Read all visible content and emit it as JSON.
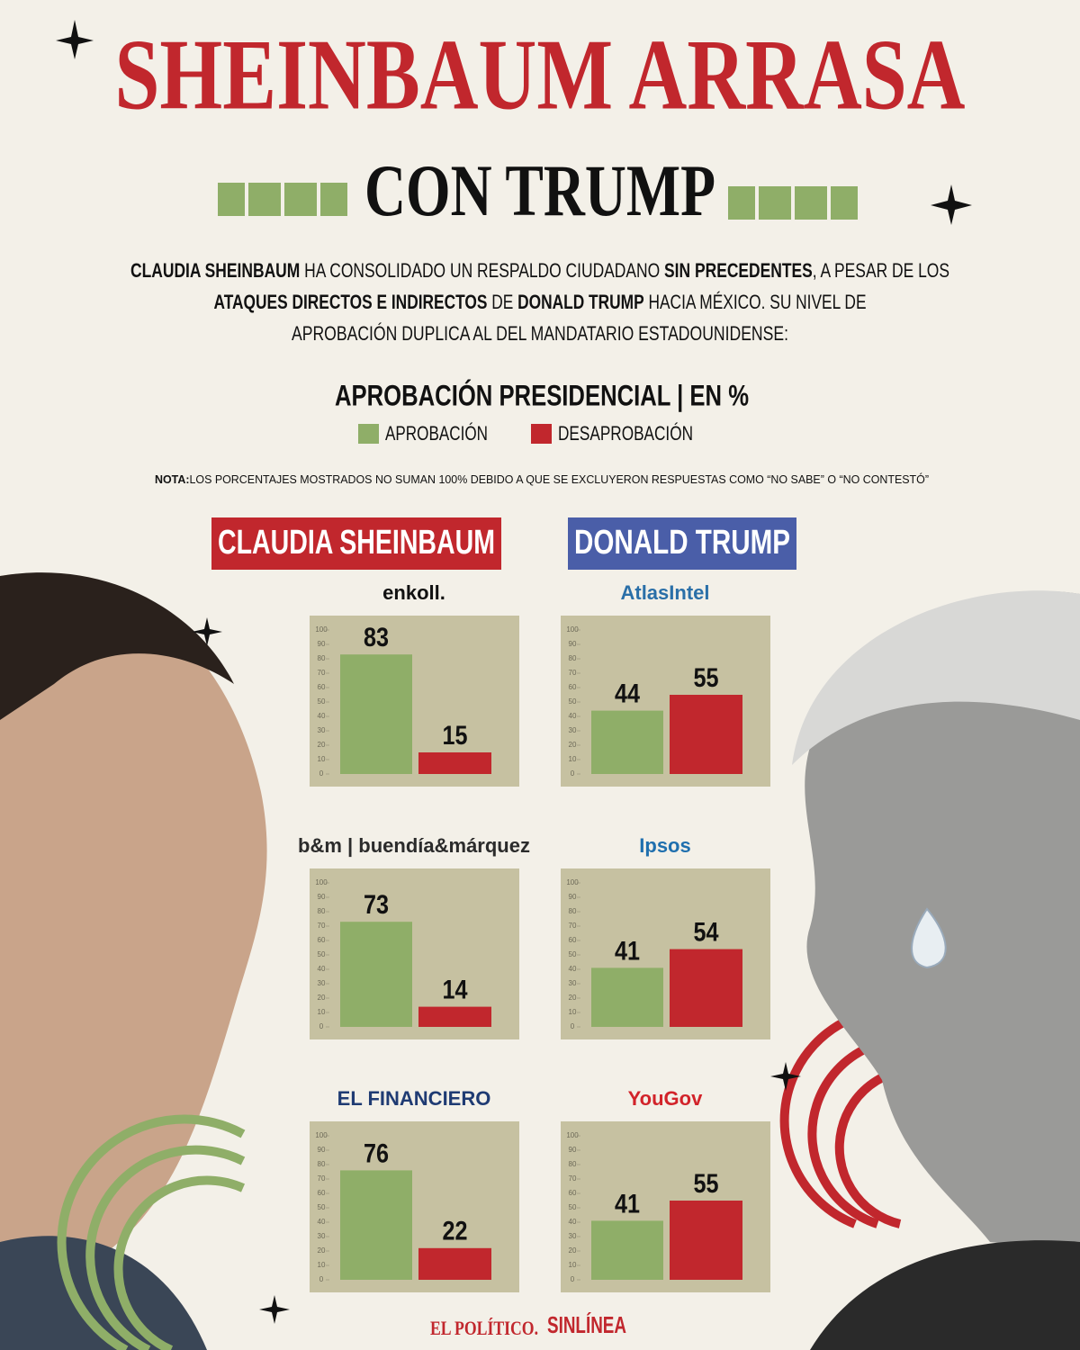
{
  "header": {
    "title": "SHEINBAUM ARRASA",
    "subtitle": "CON TRUMP"
  },
  "intro": [
    [
      {
        "text": "CLAUDIA SHEINBAUM",
        "bold": true
      },
      {
        "text": " HA CONSOLIDADO UN RESPALDO CIUDADANO ",
        "bold": false
      },
      {
        "text": "SIN PRECEDENTES",
        "bold": true
      },
      {
        "text": ", A PESAR DE LOS",
        "bold": false
      }
    ],
    [
      {
        "text": "ATAQUES DIRECTOS E INDIRECTOS",
        "bold": true
      },
      {
        "text": " DE ",
        "bold": false
      },
      {
        "text": "DONALD TRUMP",
        "bold": true
      },
      {
        "text": " HACIA MÉXICO. SU NIVEL DE",
        "bold": false
      }
    ],
    [
      {
        "text": "APROBACIÓN DUPLICA AL DEL MANDATARIO ESTADOUNIDENSE:",
        "bold": false
      }
    ]
  ],
  "chart_heading": "APROBACIÓN PRESIDENCIAL | EN %",
  "legend": [
    {
      "name": "APROBACIÓN",
      "color": "#8fae68"
    },
    {
      "name": "DESAPROBACIÓN",
      "color": "#c1272d"
    }
  ],
  "note": {
    "label": "NOTA:",
    "text": "LOS PORCENTAJES MOSTRADOS NO SUMAN 100% DEBIDO A QUE SE EXCLUYERON RESPUESTAS COMO “NO SABE” O “NO CONTESTÓ”"
  },
  "panels": [
    {
      "name": "CLAUDIA SHEINBAUM",
      "color": "#c1272d"
    },
    {
      "name": "DONALD TRUMP",
      "color": "#4a5ea8"
    }
  ],
  "chart_data": [
    {
      "type": "bar",
      "source": "enkoll.",
      "source_color": "#111111",
      "values": [
        83,
        15
      ],
      "colors": [
        "#8fae68",
        "#c1272d"
      ],
      "ylim": [
        0,
        100
      ],
      "yticks": [
        0,
        10,
        20,
        30,
        40,
        50,
        60,
        70,
        80,
        90,
        100
      ]
    },
    {
      "type": "bar",
      "source": "b&m | buendía&márquez",
      "source_color": "#2b2b2b",
      "values": [
        73,
        14
      ],
      "colors": [
        "#8fae68",
        "#c1272d"
      ],
      "ylim": [
        0,
        100
      ],
      "yticks": [
        0,
        10,
        20,
        30,
        40,
        50,
        60,
        70,
        80,
        90,
        100
      ]
    },
    {
      "type": "bar",
      "source": "EL FINANCIERO",
      "source_color": "#1f3b73",
      "values": [
        76,
        22
      ],
      "colors": [
        "#8fae68",
        "#c1272d"
      ],
      "ylim": [
        0,
        100
      ],
      "yticks": [
        0,
        10,
        20,
        30,
        40,
        50,
        60,
        70,
        80,
        90,
        100
      ]
    },
    {
      "type": "bar",
      "source": "AtlasIntel",
      "source_color": "#2a6fa8",
      "values": [
        44,
        55
      ],
      "colors": [
        "#8fae68",
        "#c1272d"
      ],
      "ylim": [
        0,
        100
      ],
      "yticks": [
        0,
        10,
        20,
        30,
        40,
        50,
        60,
        70,
        80,
        90,
        100
      ]
    },
    {
      "type": "bar",
      "source": "Ipsos",
      "source_color": "#1f6fae",
      "values": [
        41,
        54
      ],
      "colors": [
        "#8fae68",
        "#c1272d"
      ],
      "ylim": [
        0,
        100
      ],
      "yticks": [
        0,
        10,
        20,
        30,
        40,
        50,
        60,
        70,
        80,
        90,
        100
      ]
    },
    {
      "type": "bar",
      "source": "YouGov",
      "source_color": "#d2232a",
      "values": [
        41,
        55
      ],
      "colors": [
        "#8fae68",
        "#c1272d"
      ],
      "ylim": [
        0,
        100
      ],
      "yticks": [
        0,
        10,
        20,
        30,
        40,
        50,
        60,
        70,
        80,
        90,
        100
      ]
    }
  ],
  "footer": [
    "EL POLÍTICO.",
    "SINLÍNEA"
  ]
}
